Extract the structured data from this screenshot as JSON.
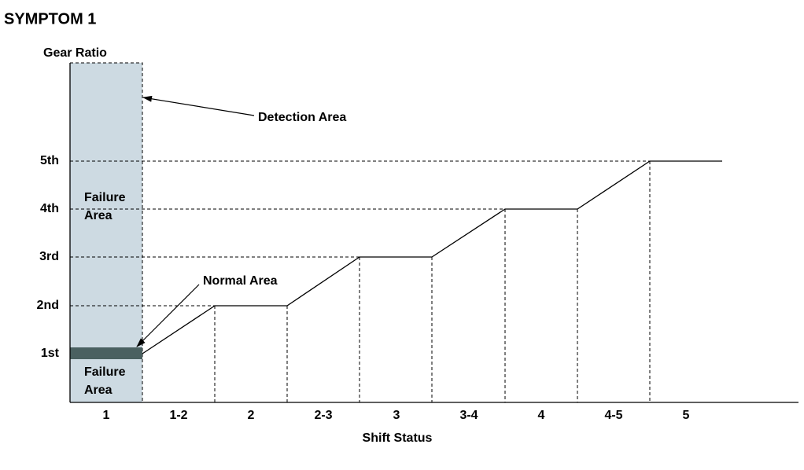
{
  "title": "SYMPTOM 1",
  "y_axis": {
    "label": "Gear Ratio",
    "ticks": [
      "5th",
      "4th",
      "3rd",
      "2nd",
      "1st"
    ]
  },
  "x_axis": {
    "label": "Shift Status",
    "categories": [
      "1",
      "1-2",
      "2",
      "2-3",
      "3",
      "3-4",
      "4",
      "4-5",
      "5"
    ]
  },
  "annotations": {
    "detection_area": "Detection Area",
    "normal_area": "Normal Area",
    "failure_area_upper": [
      "Failure",
      "Area"
    ],
    "failure_area_lower": [
      "Failure",
      "Area"
    ]
  }
}
